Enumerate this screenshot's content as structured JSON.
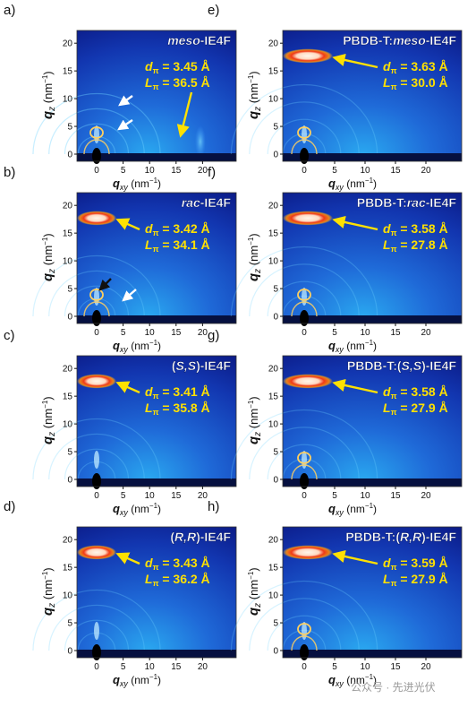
{
  "figure": {
    "panels": [
      {
        "letter": "a)",
        "title_pre": "",
        "title_italic": "meso",
        "title_post": "-IE4F",
        "d": "3.45 Å",
        "L": "36.5 Å",
        "ring_level": 0.2,
        "has_arrows": true,
        "side": "left"
      },
      {
        "letter": "b)",
        "title_pre": "",
        "title_italic": "rac",
        "title_post": "-IE4F",
        "d": "3.42 Å",
        "L": "34.1 Å",
        "ring_level": 0.9,
        "has_arrows": true,
        "side": "left"
      },
      {
        "letter": "c)",
        "title_pre": "(",
        "title_italic": "S,S",
        "title_post": ")-IE4F",
        "d": "3.41 Å",
        "L": "35.8 Å",
        "ring_level": 0.9,
        "has_arrows": false,
        "side": "left"
      },
      {
        "letter": "d)",
        "title_pre": "(",
        "title_italic": "R,R",
        "title_post": ")-IE4F",
        "d": "3.43 Å",
        "L": "36.2 Å",
        "ring_level": 0.85,
        "has_arrows": false,
        "side": "left"
      },
      {
        "letter": "e)",
        "title_pre": "PBDB-T:",
        "title_italic": "meso",
        "title_post": "-IE4F",
        "d": "3.63 Å",
        "L": "30.0 Å",
        "ring_level": 0.6,
        "has_arrows": false,
        "side": "right"
      },
      {
        "letter": "f)",
        "title_pre": "PBDB-T:",
        "title_italic": "rac",
        "title_post": "-IE4F",
        "d": "3.58 Å",
        "L": "27.8 Å",
        "ring_level": 0.9,
        "has_arrows": false,
        "side": "right"
      },
      {
        "letter": "g)",
        "title_pre": "PBDB-T:(",
        "title_italic": "S,S",
        "title_post": ")-IE4F",
        "d": "3.58 Å",
        "L": "27.9 Å",
        "ring_level": 1.0,
        "has_arrows": false,
        "side": "right"
      },
      {
        "letter": "h)",
        "title_pre": "PBDB-T:(",
        "title_italic": "R,R",
        "title_post": ")-IE4F",
        "d": "3.59 Å",
        "L": "27.9 Å",
        "ring_level": 1.0,
        "has_arrows": false,
        "side": "right"
      }
    ],
    "axes": {
      "y_label": "q",
      "y_sub": "z",
      "y_unit": "(nm",
      "y_unit_sup": "−1",
      "y_unit_close": ")",
      "x_label": "q",
      "x_sub": "xy",
      "x_unit": "(nm",
      "x_unit_sup": "−1",
      "x_unit_close": ")",
      "x_ticks": [
        "0",
        "5",
        "10",
        "15",
        "20"
      ],
      "y_ticks": [
        "0",
        "5",
        "10",
        "15",
        "20"
      ]
    },
    "param_labels": {
      "d": "d",
      "d_sub": "π",
      "L": "L",
      "L_sub": "π",
      "equals": "= "
    },
    "watermark": "公众号 · 先进光伏",
    "colors": {
      "bg_dark": "#0a1a8a",
      "bg_mid": "#1e64d8",
      "annotation_yellow": "#ffe100",
      "ring_red": "#d81e10",
      "ring_core": "#fff4e0"
    }
  }
}
